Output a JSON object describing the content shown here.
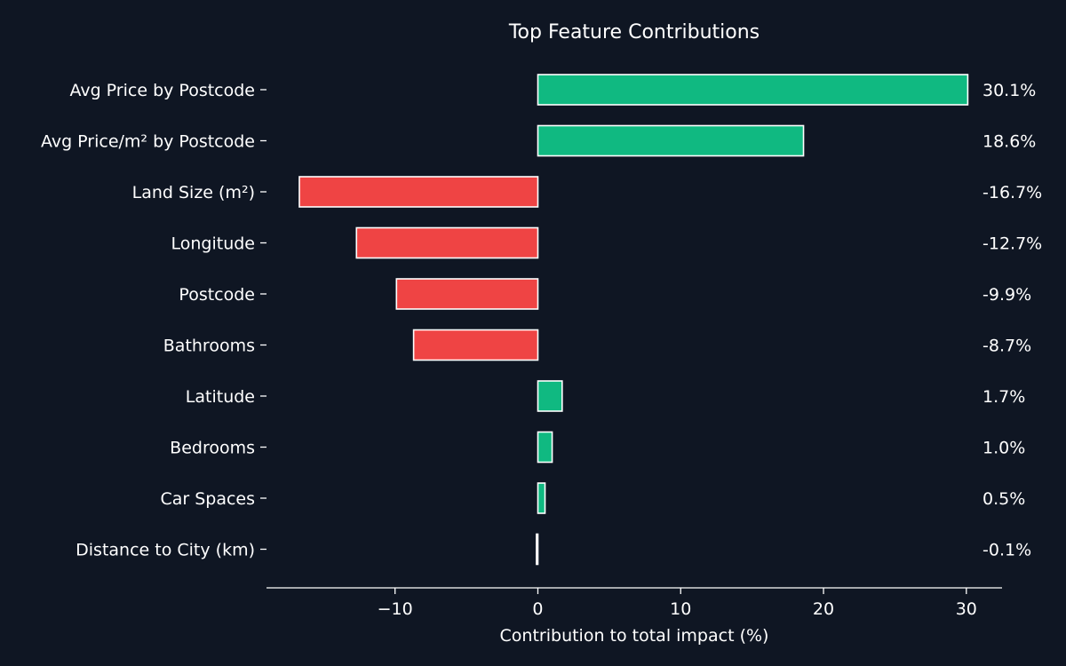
{
  "chart_data": {
    "type": "bar",
    "orientation": "horizontal",
    "title": "Top Feature Contributions",
    "xlabel": "Contribution to total impact (%)",
    "ylabel": "",
    "xlim": [
      -19,
      32.5
    ],
    "xticks": [
      -10,
      0,
      10,
      20,
      30
    ],
    "xtick_labels": [
      "−10",
      "0",
      "10",
      "20",
      "30"
    ],
    "grid": false,
    "categories": [
      "Avg Price by Postcode",
      "Avg Price/m² by Postcode",
      "Land Size (m²)",
      "Longitude",
      "Postcode",
      "Bathrooms",
      "Latitude",
      "Bedrooms",
      "Car Spaces",
      "Distance to City (km)"
    ],
    "values": [
      30.1,
      18.6,
      -16.7,
      -12.7,
      -9.9,
      -8.7,
      1.7,
      1.0,
      0.5,
      -0.1
    ],
    "value_labels": [
      "30.1%",
      "18.6%",
      "-16.7%",
      "-12.7%",
      "-9.9%",
      "-8.7%",
      "1.7%",
      "1.0%",
      "0.5%",
      "-0.1%"
    ],
    "colors": {
      "positive": "#10b981",
      "negative": "#ef4444",
      "edge": "#ffffff",
      "background": "#0f1623",
      "text": "#ffffff"
    }
  }
}
